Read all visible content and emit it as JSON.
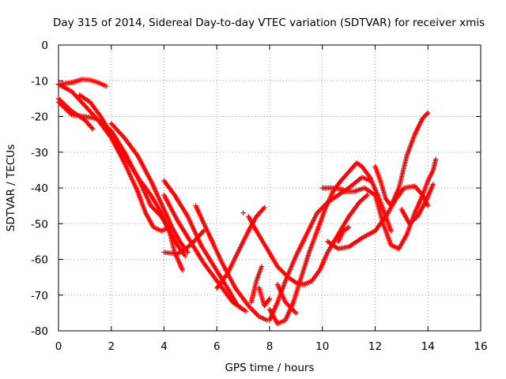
{
  "chart_data": {
    "type": "scatter",
    "title": "Day 315 of 2014, Sidereal Day-to-day VTEC variation (SDTVAR) for receiver xmis",
    "xlabel": "GPS time / hours",
    "ylabel": "SDTVAR / TECUs",
    "xlim": [
      0,
      16
    ],
    "ylim": [
      -80,
      0
    ],
    "x_ticks": [
      0,
      2,
      4,
      6,
      8,
      10,
      12,
      14,
      16
    ],
    "y_ticks": [
      0,
      -10,
      -20,
      -30,
      -40,
      -50,
      -60,
      -70,
      -80
    ],
    "grid": true,
    "legend": "none",
    "marker": "plus",
    "color": "#ff0000",
    "series": [
      {
        "points": [
          [
            0.0,
            -11
          ],
          [
            0.5,
            -10.5
          ],
          [
            0.9,
            -9.6
          ],
          [
            1.2,
            -9.8
          ],
          [
            1.5,
            -10.5
          ],
          [
            1.8,
            -11.5
          ]
        ]
      },
      {
        "points": [
          [
            0.0,
            -11
          ],
          [
            0.5,
            -13
          ],
          [
            1.0,
            -17
          ],
          [
            1.5,
            -21
          ],
          [
            2.0,
            -26
          ],
          [
            2.5,
            -33
          ],
          [
            3.0,
            -41
          ],
          [
            3.3,
            -47
          ],
          [
            3.6,
            -51
          ],
          [
            3.9,
            -52
          ],
          [
            4.2,
            -51
          ]
        ]
      },
      {
        "points": [
          [
            0.0,
            -15
          ],
          [
            0.5,
            -18.5
          ],
          [
            1.0,
            -21
          ],
          [
            1.3,
            -23.5
          ]
        ]
      },
      {
        "points": [
          [
            0.0,
            -16
          ],
          [
            0.5,
            -19.5
          ],
          [
            1.0,
            -20
          ],
          [
            1.4,
            -20.5
          ],
          [
            2.0,
            -24
          ],
          [
            2.5,
            -30
          ],
          [
            3.0,
            -37
          ],
          [
            3.5,
            -45
          ],
          [
            3.9,
            -48
          ],
          [
            4.2,
            -52
          ],
          [
            4.4,
            -58
          ],
          [
            4.7,
            -63
          ]
        ]
      },
      {
        "points": [
          [
            0.8,
            -14
          ],
          [
            1.2,
            -16
          ],
          [
            1.6,
            -20
          ],
          [
            2.0,
            -25
          ],
          [
            2.5,
            -31
          ],
          [
            3.0,
            -37
          ],
          [
            3.5,
            -42
          ],
          [
            3.9,
            -47
          ],
          [
            4.2,
            -52
          ],
          [
            4.5,
            -56
          ],
          [
            4.8,
            -59
          ]
        ]
      },
      {
        "points": [
          [
            2.0,
            -22
          ],
          [
            2.5,
            -26
          ],
          [
            3.0,
            -31
          ],
          [
            3.5,
            -38
          ],
          [
            4.0,
            -46
          ],
          [
            4.3,
            -51
          ],
          [
            4.6,
            -55
          ],
          [
            4.9,
            -58
          ]
        ]
      },
      {
        "points": [
          [
            4.0,
            -58
          ],
          [
            4.5,
            -58.5
          ],
          [
            5.0,
            -56
          ],
          [
            5.5,
            -52
          ]
        ]
      },
      {
        "points": [
          [
            4.0,
            -38
          ],
          [
            4.4,
            -42
          ],
          [
            4.9,
            -48
          ],
          [
            5.4,
            -56
          ],
          [
            5.9,
            -62
          ],
          [
            6.4,
            -68
          ],
          [
            6.8,
            -73
          ],
          [
            7.1,
            -74.5
          ]
        ]
      },
      {
        "points": [
          [
            4.0,
            -42
          ],
          [
            4.5,
            -49
          ],
          [
            5.0,
            -55
          ],
          [
            5.5,
            -61
          ],
          [
            6.0,
            -66
          ],
          [
            6.3,
            -69
          ],
          [
            6.6,
            -72
          ],
          [
            7.0,
            -74
          ]
        ]
      },
      {
        "points": [
          [
            5.2,
            -45
          ],
          [
            5.7,
            -53
          ],
          [
            6.2,
            -61
          ],
          [
            6.7,
            -68
          ],
          [
            7.2,
            -73
          ],
          [
            7.6,
            -76
          ],
          [
            7.9,
            -77
          ]
        ]
      },
      {
        "points": [
          [
            6.0,
            -68
          ],
          [
            6.4,
            -64
          ],
          [
            6.8,
            -58
          ],
          [
            7.2,
            -52
          ],
          [
            7.5,
            -48
          ],
          [
            7.8,
            -45.5
          ]
        ]
      },
      {
        "points": [
          [
            7.0,
            -47
          ]
        ]
      },
      {
        "points": [
          [
            7.2,
            -48
          ],
          [
            7.5,
            -52
          ],
          [
            7.9,
            -57
          ],
          [
            8.3,
            -62
          ],
          [
            8.7,
            -65
          ],
          [
            9.0,
            -66.5
          ],
          [
            9.3,
            -67
          ],
          [
            9.6,
            -66
          ],
          [
            9.9,
            -63
          ],
          [
            10.2,
            -58
          ],
          [
            10.6,
            -53
          ],
          [
            11.0,
            -48
          ],
          [
            11.4,
            -44
          ],
          [
            11.7,
            -42
          ]
        ]
      },
      {
        "points": [
          [
            7.3,
            -72
          ],
          [
            7.5,
            -66
          ],
          [
            7.7,
            -62
          ]
        ]
      },
      {
        "points": [
          [
            7.6,
            -68
          ],
          [
            7.8,
            -73
          ],
          [
            8.0,
            -71
          ]
        ]
      },
      {
        "points": [
          [
            8.0,
            -74
          ],
          [
            8.3,
            -78
          ],
          [
            8.6,
            -77
          ],
          [
            8.9,
            -72
          ],
          [
            9.2,
            -65
          ],
          [
            9.5,
            -58
          ],
          [
            9.8,
            -52
          ],
          [
            10.1,
            -46
          ],
          [
            10.4,
            -41
          ],
          [
            10.7,
            -38
          ],
          [
            11.0,
            -35.5
          ],
          [
            11.3,
            -33
          ],
          [
            11.5,
            -34
          ],
          [
            11.8,
            -37
          ],
          [
            12.1,
            -42
          ],
          [
            12.4,
            -48
          ],
          [
            12.6,
            -52
          ]
        ]
      },
      {
        "points": [
          [
            8.0,
            -77
          ],
          [
            8.3,
            -72
          ],
          [
            8.6,
            -66
          ],
          [
            9.0,
            -59
          ],
          [
            9.4,
            -53
          ],
          [
            9.8,
            -47
          ],
          [
            10.2,
            -44
          ],
          [
            10.6,
            -42
          ],
          [
            11.0,
            -40
          ],
          [
            11.5,
            -37
          ],
          [
            11.8,
            -38
          ]
        ]
      },
      {
        "points": [
          [
            8.3,
            -67
          ],
          [
            8.6,
            -72
          ],
          [
            9.0,
            -75
          ]
        ]
      },
      {
        "points": [
          [
            10.0,
            -40
          ],
          [
            10.4,
            -40
          ],
          [
            10.8,
            -40.5
          ]
        ]
      },
      {
        "points": [
          [
            10.6,
            -55
          ],
          [
            10.8,
            -52
          ],
          [
            11.0,
            -51
          ]
        ]
      },
      {
        "points": [
          [
            10.2,
            -55
          ],
          [
            10.6,
            -57
          ],
          [
            11.0,
            -56.5
          ],
          [
            11.5,
            -54
          ],
          [
            12.0,
            -52
          ],
          [
            12.4,
            -48
          ],
          [
            12.8,
            -43
          ],
          [
            13.1,
            -40
          ],
          [
            13.5,
            -39.5
          ],
          [
            13.8,
            -42
          ],
          [
            14.0,
            -45
          ]
        ]
      },
      {
        "points": [
          [
            10.8,
            -41
          ],
          [
            11.2,
            -41
          ],
          [
            11.6,
            -40
          ],
          [
            12.0,
            -42
          ],
          [
            12.3,
            -50
          ],
          [
            12.6,
            -56
          ],
          [
            12.9,
            -57
          ],
          [
            13.2,
            -53
          ],
          [
            13.5,
            -47
          ],
          [
            13.8,
            -42
          ],
          [
            14.0,
            -38
          ],
          [
            14.2,
            -35
          ],
          [
            14.3,
            -32
          ]
        ]
      },
      {
        "points": [
          [
            12.0,
            -34
          ],
          [
            12.2,
            -38
          ],
          [
            12.4,
            -43
          ],
          [
            12.6,
            -45
          ],
          [
            12.9,
            -40
          ],
          [
            13.2,
            -31
          ],
          [
            13.5,
            -25
          ],
          [
            13.8,
            -20.5
          ],
          [
            14.0,
            -19
          ]
        ]
      },
      {
        "points": [
          [
            13.0,
            -46
          ],
          [
            13.3,
            -50
          ],
          [
            13.6,
            -48
          ],
          [
            13.9,
            -44
          ],
          [
            14.2,
            -39
          ]
        ]
      }
    ]
  }
}
